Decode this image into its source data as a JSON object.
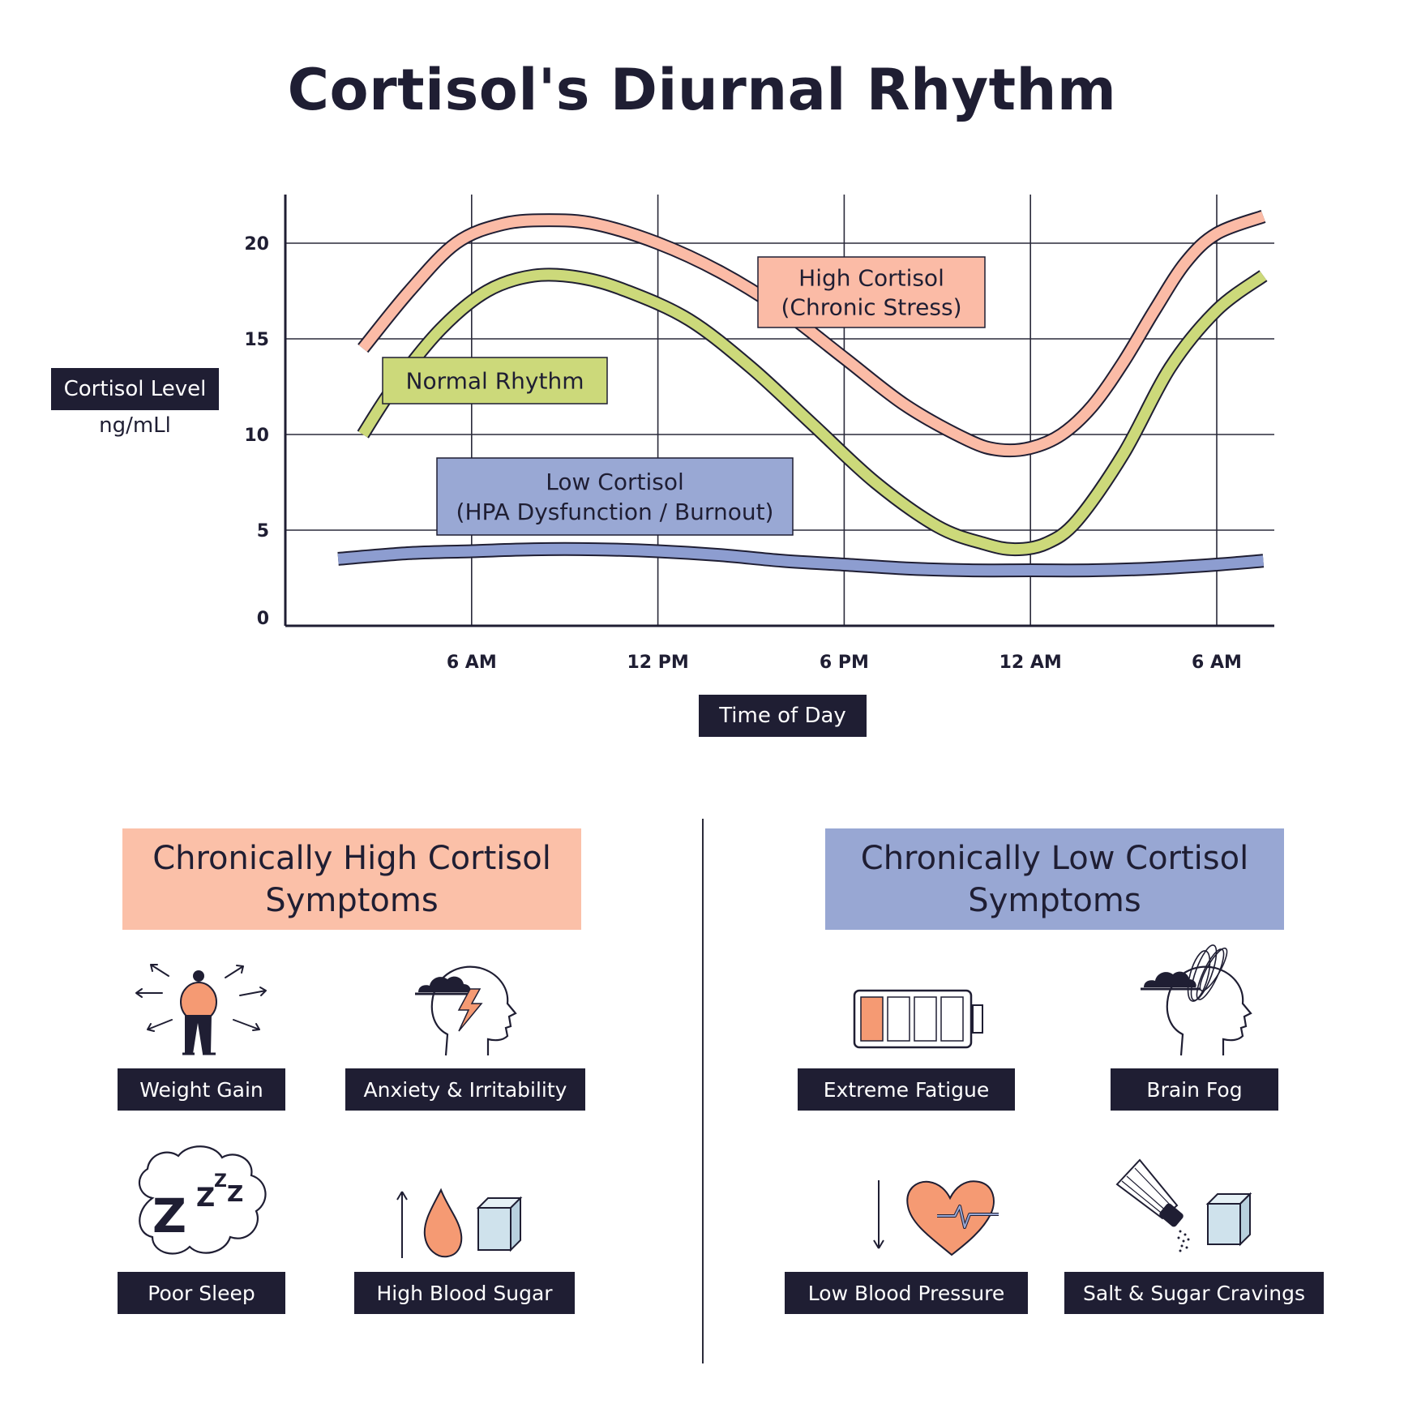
{
  "title": "Cortisol's Diurnal Rhythm",
  "chart_data": {
    "type": "line",
    "title": "Cortisol's Diurnal Rhythm",
    "xlabel": "Time of Day",
    "ylabel": "Cortisol Level",
    "yunit": "ng/mLl",
    "y_ticks": [
      0,
      5,
      10,
      15,
      20
    ],
    "x_ticks": [
      "6 AM",
      "12 PM",
      "6 PM",
      "12 AM",
      "6 AM"
    ],
    "x_tick_hours": [
      6,
      12,
      18,
      24,
      30
    ],
    "xlim": [
      0,
      32
    ],
    "ylim": [
      0,
      22
    ],
    "grid": true,
    "series": [
      {
        "name": "High Cortisol\n(Chronic Stress)",
        "color": "#fbbba6",
        "x": [
          2.5,
          4,
          5.5,
          7,
          8.5,
          10,
          12,
          14,
          16,
          18,
          20,
          22,
          23,
          24,
          25,
          26,
          27,
          28,
          29,
          30,
          31.5
        ],
        "y": [
          14.5,
          17.5,
          20,
          21,
          21.2,
          21,
          20,
          18.5,
          16.5,
          14,
          11.5,
          9.7,
          9.2,
          9.3,
          10,
          11.5,
          13.8,
          16.5,
          19,
          20.5,
          21.4
        ]
      },
      {
        "name": "Normal Rhythm",
        "color": "#ccd97a",
        "x": [
          2.5,
          3.5,
          5,
          6.5,
          8,
          9.5,
          11,
          13,
          15,
          17,
          19,
          21,
          22.5,
          23.5,
          24.5,
          25.5,
          27,
          28.5,
          30,
          31.5
        ],
        "y": [
          10,
          12.5,
          15.5,
          17.5,
          18.3,
          18.2,
          17.5,
          16,
          13.5,
          10.5,
          7.5,
          5.2,
          4.3,
          4,
          4.3,
          5.5,
          9,
          13.5,
          16.5,
          18.3
        ]
      },
      {
        "name": "Low Cortisol\n(HPA Dysfunction / Burnout)",
        "color": "#8d9dd0",
        "x": [
          1.7,
          4,
          6,
          8,
          10,
          12,
          14,
          16,
          18,
          20,
          22,
          24,
          26,
          28,
          30,
          31.5
        ],
        "y": [
          3.5,
          3.8,
          3.9,
          4,
          4,
          3.9,
          3.7,
          3.4,
          3.2,
          3.0,
          2.9,
          2.9,
          2.9,
          3.0,
          3.2,
          3.4
        ]
      }
    ],
    "annotations": [
      {
        "text_lines": [
          "High Cortisol",
          "(Chronic Stress)"
        ],
        "color": "#fbbba6"
      },
      {
        "text_lines": [
          "Normal Rhythm"
        ],
        "color": "#ccd97a"
      },
      {
        "text_lines": [
          "Low Cortisol",
          "(HPA Dysfunction / Burnout)"
        ],
        "color": "#99a8d4"
      }
    ]
  },
  "axis": {
    "ylabel": "Cortisol Level",
    "yunit": "ng/mLl",
    "xlabel": "Time of Day"
  },
  "high_section": {
    "heading_line1": "Chronically High Cortisol",
    "heading_line2": "Symptoms",
    "color": "#fbc0a8",
    "symptoms": [
      "Weight Gain",
      "Anxiety & Irritability",
      "Poor Sleep",
      "High Blood Sugar"
    ]
  },
  "low_section": {
    "heading_line1": "Chronically Low Cortisol",
    "heading_line2": "Symptoms",
    "color": "#98a7d3",
    "symptoms": [
      "Extreme Fatigue",
      "Brain Fog",
      "Low Blood Pressure",
      "Salt & Sugar Cravings"
    ]
  },
  "icons": {
    "weight_gain": "person-with-arrows-icon",
    "anxiety": "head-with-storm-cloud-lightning-icon",
    "poor_sleep": "zzz-cloud-icon",
    "high_blood_sugar": "up-arrow-drop-sugar-cube-icon",
    "extreme_fatigue": "low-battery-icon",
    "brain_fog": "head-with-scribble-cloud-icon",
    "low_blood_pressure": "down-arrow-heart-pulse-icon",
    "cravings": "salt-shaker-sugar-cube-icon"
  },
  "zzz_text": "Z"
}
